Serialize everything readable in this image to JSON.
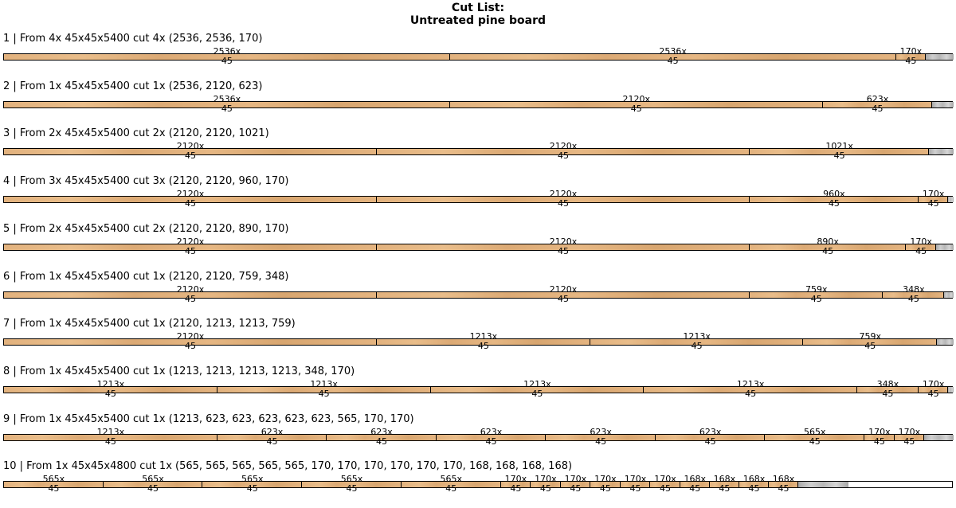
{
  "title": {
    "line1": "Cut List:",
    "line2": "Untreated pine board"
  },
  "colors": {
    "wood": "#e2b27e",
    "waste": "#b7b7b7",
    "outline": "#000000"
  },
  "rows": [
    {
      "label": "1 | From 4x 45x45x5400 cut 4x (2536, 2536, 170)",
      "stock_length": 5400,
      "width": 45,
      "cuts": [
        2536,
        2536,
        170
      ]
    },
    {
      "label": "2 | From 1x 45x45x5400 cut 1x (2536, 2120, 623)",
      "stock_length": 5400,
      "width": 45,
      "cuts": [
        2536,
        2120,
        623
      ]
    },
    {
      "label": "3 | From 2x 45x45x5400 cut 2x (2120, 2120, 1021)",
      "stock_length": 5400,
      "width": 45,
      "cuts": [
        2120,
        2120,
        1021
      ]
    },
    {
      "label": "4 | From 3x 45x45x5400 cut 3x (2120, 2120, 960, 170)",
      "stock_length": 5400,
      "width": 45,
      "cuts": [
        2120,
        2120,
        960,
        170
      ]
    },
    {
      "label": "5 | From 2x 45x45x5400 cut 2x (2120, 2120, 890, 170)",
      "stock_length": 5400,
      "width": 45,
      "cuts": [
        2120,
        2120,
        890,
        170
      ]
    },
    {
      "label": "6 | From 1x 45x45x5400 cut 1x (2120, 2120, 759, 348)",
      "stock_length": 5400,
      "width": 45,
      "cuts": [
        2120,
        2120,
        759,
        348
      ]
    },
    {
      "label": "7 | From 1x 45x45x5400 cut 1x (2120, 1213, 1213, 759)",
      "stock_length": 5400,
      "width": 45,
      "cuts": [
        2120,
        1213,
        1213,
        759
      ]
    },
    {
      "label": "8 | From 1x 45x45x5400 cut 1x (1213, 1213, 1213, 1213, 348, 170)",
      "stock_length": 5400,
      "width": 45,
      "cuts": [
        1213,
        1213,
        1213,
        1213,
        348,
        170
      ]
    },
    {
      "label": "9 | From 1x 45x45x5400 cut 1x (1213, 623, 623, 623, 623, 623, 565, 170, 170)",
      "stock_length": 5400,
      "width": 45,
      "cuts": [
        1213,
        623,
        623,
        623,
        623,
        623,
        565,
        170,
        170
      ]
    },
    {
      "label": "10 | From 1x 45x45x4800 cut 1x (565, 565, 565, 565, 565, 170, 170, 170, 170, 170, 170, 168, 168, 168, 168)",
      "stock_length": 4800,
      "width": 45,
      "cuts": [
        565,
        565,
        565,
        565,
        565,
        170,
        170,
        170,
        170,
        170,
        170,
        168,
        168,
        168,
        168
      ]
    }
  ]
}
